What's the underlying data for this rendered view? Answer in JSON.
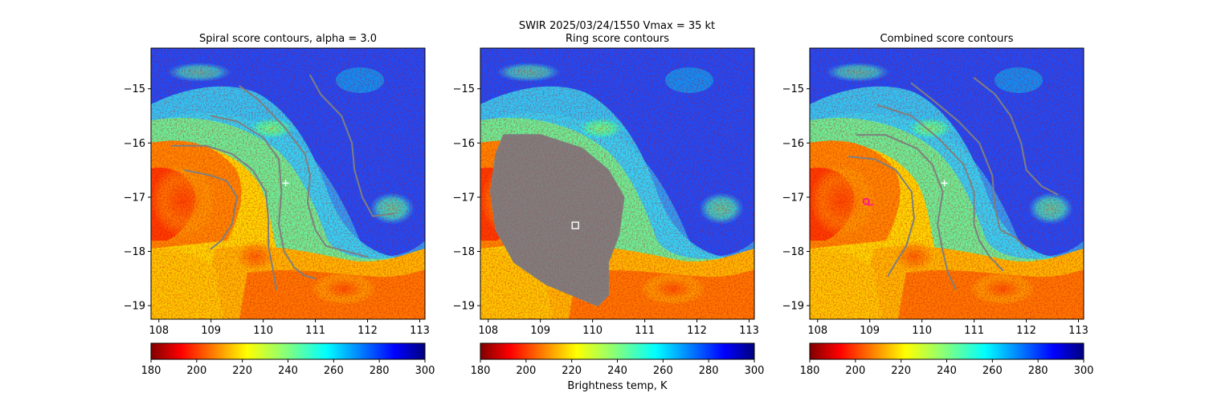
{
  "figure": {
    "suptitle": "SWIR  2025/03/24/1550    Vmax = 35 kt",
    "colorbar_label": "Brightness temp, K"
  },
  "colors": {
    "contour": "#7f7f7f",
    "marker_center": "#ffffff",
    "marker_combined": "#ff1493"
  },
  "chart_data": [
    {
      "type": "heatmap",
      "title": "Spiral score contours, alpha =  3.0",
      "xlim": [
        107.85,
        113.1
      ],
      "ylim": [
        -19.25,
        -14.25
      ],
      "x_ticks": [
        "108",
        "109",
        "110",
        "111",
        "112",
        "113"
      ],
      "y_ticks": [
        "−15",
        "−16",
        "−17",
        "−18",
        "−19"
      ],
      "colorbar": {
        "min": 180,
        "max": 300,
        "ticks": [
          "180",
          "200",
          "220",
          "240",
          "260",
          "280",
          "300"
        ],
        "colormap": "jet_r"
      },
      "marker": {
        "shape": "plus",
        "x": 110.43,
        "y": -16.74
      },
      "contours": [
        [
          [
            108.5,
            -16.5
          ],
          [
            109.0,
            -16.6
          ],
          [
            109.3,
            -16.7
          ],
          [
            109.5,
            -17.0
          ],
          [
            109.4,
            -17.5
          ],
          [
            109.2,
            -17.8
          ],
          [
            109.0,
            -17.95
          ]
        ],
        [
          [
            108.25,
            -16.05
          ],
          [
            108.9,
            -16.05
          ],
          [
            109.4,
            -16.2
          ],
          [
            109.8,
            -16.5
          ],
          [
            110.05,
            -16.9
          ],
          [
            110.1,
            -17.4
          ],
          [
            110.1,
            -17.9
          ],
          [
            110.2,
            -18.4
          ],
          [
            110.25,
            -18.7
          ]
        ],
        [
          [
            109.0,
            -15.5
          ],
          [
            109.5,
            -15.6
          ],
          [
            110.0,
            -15.9
          ],
          [
            110.3,
            -16.3
          ],
          [
            110.35,
            -16.9
          ],
          [
            110.3,
            -17.5
          ],
          [
            110.4,
            -18.0
          ],
          [
            110.6,
            -18.3
          ],
          [
            110.8,
            -18.45
          ],
          [
            111.0,
            -18.5
          ]
        ],
        [
          [
            109.55,
            -14.95
          ],
          [
            109.9,
            -15.2
          ],
          [
            110.4,
            -15.7
          ],
          [
            110.8,
            -16.2
          ],
          [
            110.9,
            -16.6
          ],
          [
            110.85,
            -17.1
          ],
          [
            111.0,
            -17.6
          ],
          [
            111.2,
            -17.9
          ],
          [
            111.6,
            -18.0
          ],
          [
            112.0,
            -18.1
          ]
        ],
        [
          [
            110.9,
            -14.75
          ],
          [
            111.1,
            -15.1
          ],
          [
            111.5,
            -15.5
          ],
          [
            111.7,
            -16.0
          ],
          [
            111.75,
            -16.5
          ],
          [
            111.9,
            -17.0
          ],
          [
            112.1,
            -17.35
          ],
          [
            112.5,
            -17.3
          ]
        ]
      ]
    },
    {
      "type": "heatmap",
      "title": "Ring score contours",
      "xlim": [
        107.85,
        113.1
      ],
      "ylim": [
        -19.25,
        -14.25
      ],
      "x_ticks": [
        "108",
        "109",
        "110",
        "111",
        "112",
        "113"
      ],
      "y_ticks": [
        "−15",
        "−16",
        "−17",
        "−18",
        "−19"
      ],
      "colorbar": {
        "min": 180,
        "max": 300,
        "ticks": [
          "180",
          "200",
          "220",
          "240",
          "260",
          "280",
          "300"
        ],
        "colormap": "jet_r"
      },
      "marker": {
        "shape": "square",
        "x": 109.67,
        "y": -17.52
      },
      "ring_region": [
        [
          108.3,
          -15.85
        ],
        [
          109.0,
          -15.85
        ],
        [
          109.8,
          -16.1
        ],
        [
          110.3,
          -16.5
        ],
        [
          110.6,
          -17.0
        ],
        [
          110.5,
          -17.7
        ],
        [
          110.3,
          -18.2
        ],
        [
          110.3,
          -18.8
        ],
        [
          110.1,
          -19.0
        ],
        [
          109.6,
          -18.8
        ],
        [
          109.1,
          -18.6
        ],
        [
          108.5,
          -18.2
        ],
        [
          108.15,
          -17.6
        ],
        [
          108.05,
          -16.9
        ],
        [
          108.15,
          -16.2
        ]
      ]
    },
    {
      "type": "heatmap",
      "title": "Combined score contours",
      "xlim": [
        107.85,
        113.1
      ],
      "ylim": [
        -19.25,
        -14.25
      ],
      "x_ticks": [
        "108",
        "109",
        "110",
        "111",
        "112",
        "113"
      ],
      "y_ticks": [
        "−15",
        "−16",
        "−17",
        "−18",
        "−19"
      ],
      "colorbar": {
        "min": 180,
        "max": 300,
        "ticks": [
          "180",
          "200",
          "220",
          "240",
          "260",
          "280",
          "300"
        ],
        "colormap": "jet_r"
      },
      "marker": {
        "shape": "plus",
        "x": 110.43,
        "y": -16.74
      },
      "marker2": {
        "shape": "circle",
        "x": 108.93,
        "y": -17.08
      },
      "contours": [
        [
          [
            108.6,
            -16.25
          ],
          [
            109.1,
            -16.3
          ],
          [
            109.5,
            -16.5
          ],
          [
            109.8,
            -16.9
          ],
          [
            109.85,
            -17.4
          ],
          [
            109.7,
            -17.9
          ],
          [
            109.5,
            -18.2
          ],
          [
            109.35,
            -18.45
          ]
        ],
        [
          [
            108.75,
            -15.85
          ],
          [
            109.3,
            -15.85
          ],
          [
            109.9,
            -16.1
          ],
          [
            110.2,
            -16.4
          ],
          [
            110.4,
            -16.9
          ],
          [
            110.3,
            -17.5
          ],
          [
            110.4,
            -18.0
          ],
          [
            110.5,
            -18.4
          ],
          [
            110.65,
            -18.7
          ]
        ],
        [
          [
            109.15,
            -15.3
          ],
          [
            109.8,
            -15.5
          ],
          [
            110.3,
            -15.9
          ],
          [
            110.8,
            -16.4
          ],
          [
            111.0,
            -16.9
          ],
          [
            111.0,
            -17.5
          ],
          [
            111.1,
            -17.8
          ],
          [
            111.3,
            -18.1
          ],
          [
            111.55,
            -18.35
          ]
        ],
        [
          [
            109.8,
            -14.9
          ],
          [
            110.2,
            -15.2
          ],
          [
            110.7,
            -15.6
          ],
          [
            111.1,
            -16.0
          ],
          [
            111.35,
            -16.6
          ],
          [
            111.4,
            -17.2
          ],
          [
            111.5,
            -17.6
          ],
          [
            111.8,
            -17.75
          ],
          [
            112.0,
            -17.95
          ]
        ],
        [
          [
            111.0,
            -14.8
          ],
          [
            111.4,
            -15.1
          ],
          [
            111.7,
            -15.5
          ],
          [
            111.9,
            -16.0
          ],
          [
            112.0,
            -16.5
          ],
          [
            112.3,
            -16.8
          ],
          [
            112.6,
            -16.95
          ]
        ]
      ]
    }
  ]
}
